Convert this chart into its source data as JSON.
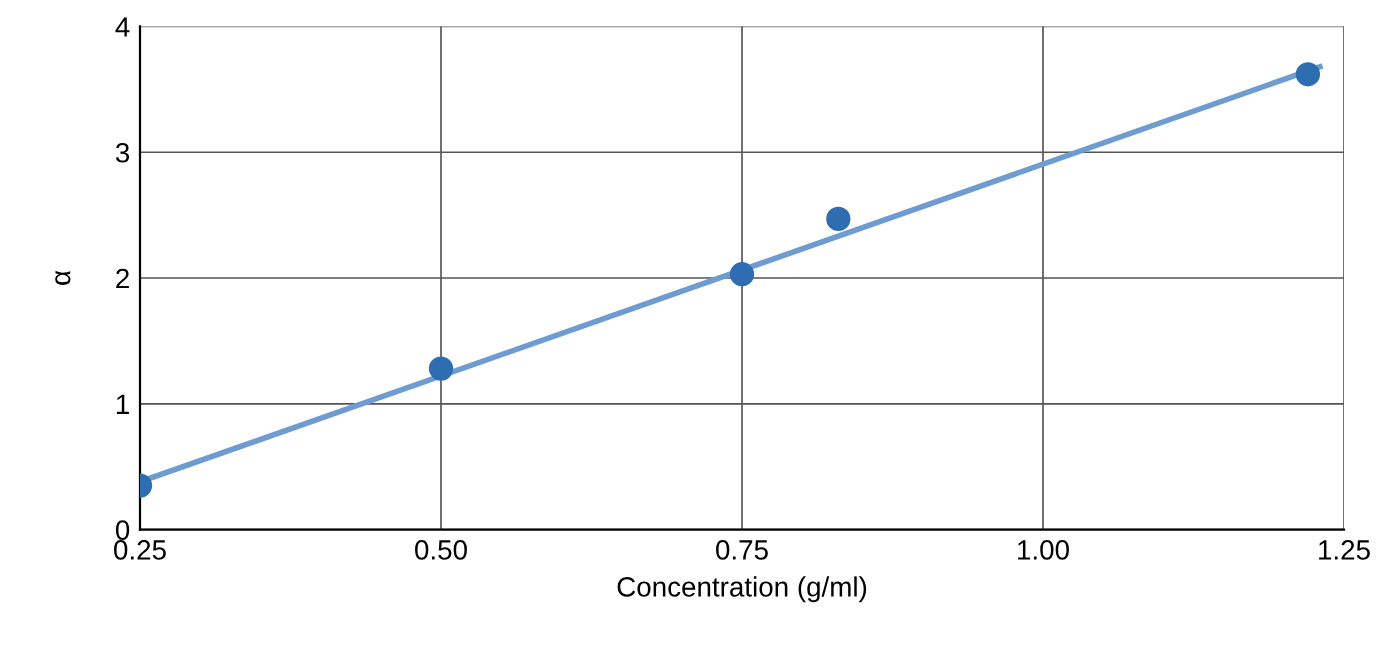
{
  "chart_data": {
    "type": "scatter",
    "xlabel": "Concentration (g/ml)",
    "ylabel": "α",
    "series": [
      {
        "color": "#2f6db3",
        "x": [
          0.25,
          0.5,
          0.75,
          0.83,
          1.22
        ],
        "values": [
          0.35,
          1.28,
          2.03,
          2.47,
          3.62
        ]
      },
      {
        "type": "line",
        "marker": "none",
        "color": "#6f9cd0",
        "x": [
          0.25,
          1.23
        ],
        "values": [
          0.38,
          3.68
        ]
      }
    ],
    "xlim": [
      0.25,
      1.25
    ],
    "xticks": [
      {
        "value": 0.25,
        "label": "0.25"
      },
      {
        "value": 0.5,
        "label": "0.50"
      },
      {
        "value": 0.75,
        "label": "0.75"
      },
      {
        "value": 1.0,
        "label": "1.00"
      },
      {
        "value": 1.25,
        "label": "1.25"
      }
    ],
    "ylim": [
      0,
      4
    ],
    "yticks": [
      0,
      1,
      2,
      3,
      4
    ],
    "grid": true,
    "marker": "circle"
  }
}
